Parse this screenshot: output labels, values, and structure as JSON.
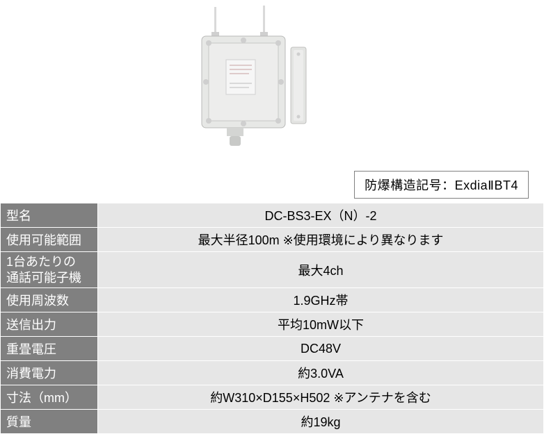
{
  "product_image": {
    "body_color": "#e7e8e6",
    "shadow_color": "#c6c7c5",
    "antenna_color": "#dcdcdc",
    "label_color": "#f4f4f4"
  },
  "badge": {
    "prefix": "防爆構造記号：",
    "value": "ExdiaⅡBT4",
    "prefix_color": "#000000",
    "value_color": "#000000",
    "border_color": "#808080"
  },
  "table": {
    "label_bg": "#808080",
    "label_fg": "#ffffff",
    "value_bg": "#e6e6e6",
    "value_fg": "#000000",
    "rows": [
      {
        "label": "型名",
        "value": "DC-BS3-EX（N）-2"
      },
      {
        "label": "使用可能範囲",
        "value": "最大半径100m ※使用環境により異なります"
      },
      {
        "label": "1台あたりの\n通話可能子機",
        "value": "最大4ch",
        "two_line": true
      },
      {
        "label": "使用周波数",
        "value": "1.9GHz帯"
      },
      {
        "label": "送信出力",
        "value": "平均10mW以下"
      },
      {
        "label": "重畳電圧",
        "value": "DC48V"
      },
      {
        "label": "消費電力",
        "value": "約3.0VA"
      },
      {
        "label": "寸法（mm）",
        "value": "約W310×D155×H502 ※アンテナを含む"
      },
      {
        "label": "質量",
        "value": "約19kg"
      }
    ]
  }
}
